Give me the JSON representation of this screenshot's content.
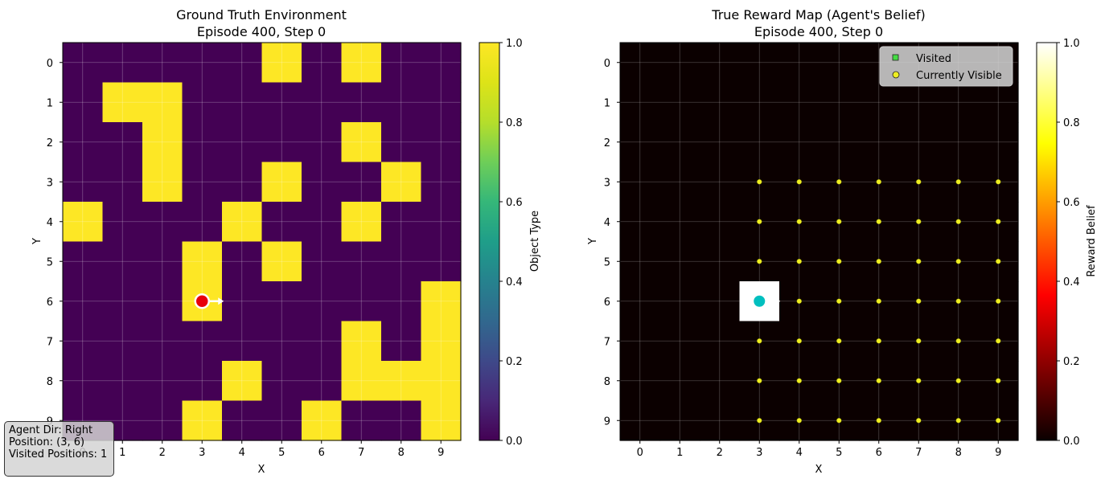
{
  "chart_data": [
    {
      "type": "heatmap",
      "title": "Ground Truth Environment",
      "subtitle": "Episode 400, Step 0",
      "xlabel": "X",
      "ylabel": "Y",
      "x_ticks": [
        "0",
        "1",
        "2",
        "3",
        "4",
        "5",
        "6",
        "7",
        "8",
        "9"
      ],
      "y_ticks": [
        "0",
        "1",
        "2",
        "3",
        "4",
        "5",
        "6",
        "7",
        "8",
        "9"
      ],
      "colormap": "viridis",
      "colorbar_label": "Object Type",
      "colorbar_range": [
        0,
        1
      ],
      "colorbar_ticks": [
        "0.0",
        "0.2",
        "0.4",
        "0.6",
        "0.8",
        "1.0"
      ],
      "grid": true,
      "grid_values": [
        [
          0,
          0,
          0,
          0,
          0,
          1,
          0,
          1,
          0,
          0
        ],
        [
          0,
          1,
          1,
          0,
          0,
          0,
          0,
          0,
          0,
          0
        ],
        [
          0,
          0,
          1,
          0,
          0,
          0,
          0,
          1,
          0,
          0
        ],
        [
          0,
          0,
          1,
          0,
          0,
          1,
          0,
          0,
          1,
          0
        ],
        [
          1,
          0,
          0,
          0,
          1,
          0,
          0,
          1,
          0,
          0
        ],
        [
          0,
          0,
          0,
          1,
          0,
          1,
          0,
          0,
          0,
          0
        ],
        [
          0,
          0,
          0,
          1,
          0,
          0,
          0,
          0,
          0,
          1
        ],
        [
          0,
          0,
          0,
          0,
          0,
          0,
          0,
          1,
          0,
          1
        ],
        [
          0,
          0,
          0,
          0,
          1,
          0,
          0,
          1,
          1,
          1
        ],
        [
          0,
          0,
          0,
          1,
          0,
          0,
          1,
          0,
          0,
          1
        ]
      ],
      "agent": {
        "x": 3,
        "y": 6,
        "direction": "right",
        "color": "#e8000b"
      },
      "colors": {
        "low": "#440154",
        "high": "#fde725"
      }
    },
    {
      "type": "heatmap",
      "title": "True Reward Map (Agent's Belief)",
      "subtitle": "Episode 400, Step 0",
      "xlabel": "X",
      "ylabel": "Y",
      "x_ticks": [
        "0",
        "1",
        "2",
        "3",
        "4",
        "5",
        "6",
        "7",
        "8",
        "9"
      ],
      "y_ticks": [
        "0",
        "1",
        "2",
        "3",
        "4",
        "5",
        "6",
        "7",
        "8",
        "9"
      ],
      "colormap": "hot",
      "colorbar_label": "Reward Belief",
      "colorbar_range": [
        0,
        1
      ],
      "colorbar_ticks": [
        "0.0",
        "0.2",
        "0.4",
        "0.6",
        "0.8",
        "1.0"
      ],
      "grid": true,
      "grid_values": [
        [
          0,
          0,
          0,
          0,
          0,
          0,
          0,
          0,
          0,
          0
        ],
        [
          0,
          0,
          0,
          0,
          0,
          0,
          0,
          0,
          0,
          0
        ],
        [
          0,
          0,
          0,
          0,
          0,
          0,
          0,
          0,
          0,
          0
        ],
        [
          0,
          0,
          0,
          0,
          0,
          0,
          0,
          0,
          0,
          0
        ],
        [
          0,
          0,
          0,
          0,
          0,
          0,
          0,
          0,
          0,
          0
        ],
        [
          0,
          0,
          0,
          0,
          0,
          0,
          0,
          0,
          0,
          0
        ],
        [
          0,
          0,
          0,
          1,
          0,
          0,
          0,
          0,
          0,
          0
        ],
        [
          0,
          0,
          0,
          0,
          0,
          0,
          0,
          0,
          0,
          0
        ],
        [
          0,
          0,
          0,
          0,
          0,
          0,
          0,
          0,
          0,
          0
        ],
        [
          0,
          0,
          0,
          0,
          0,
          0,
          0,
          0,
          0,
          0
        ]
      ],
      "visible_x_range": [
        3,
        9
      ],
      "visible_y_range": [
        3,
        9
      ],
      "agent": {
        "x": 3,
        "y": 6,
        "direction": "right",
        "color": "#00bfbf"
      },
      "legend_position": "top-right",
      "legend": [
        {
          "label": "Visited",
          "marker": "square",
          "color": "#44dd44"
        },
        {
          "label": "Currently Visible",
          "marker": "circle",
          "color": "#eeee22"
        }
      ]
    }
  ],
  "info_box": {
    "line1": "Agent Dir: Right",
    "line2": "Position: (3, 6)",
    "line3": "Visited Positions: 1"
  }
}
